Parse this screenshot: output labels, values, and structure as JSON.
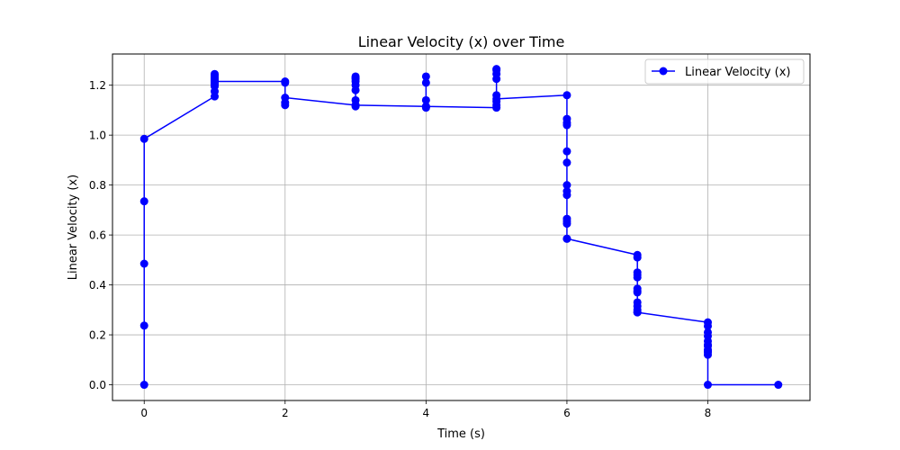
{
  "chart_data": {
    "type": "line",
    "title": "Linear Velocity (x) over Time",
    "xlabel": "Time (s)",
    "ylabel": "Linear Velocity (x)",
    "xlim": [
      -0.45,
      9.45
    ],
    "ylim": [
      -0.063,
      1.325
    ],
    "xticks": [
      0,
      2,
      4,
      6,
      8
    ],
    "xtick_labels": [
      "0",
      "2",
      "4",
      "6",
      "8"
    ],
    "yticks": [
      0.0,
      0.2,
      0.4,
      0.6,
      0.8,
      1.0,
      1.2
    ],
    "ytick_labels": [
      "0.0",
      "0.2",
      "0.4",
      "0.6",
      "0.8",
      "1.0",
      "1.2"
    ],
    "grid": true,
    "legend": {
      "placement": "upper-right"
    },
    "series": [
      {
        "name": "Linear Velocity (x)",
        "color": "#0000ff",
        "marker": "circle",
        "x": [
          0,
          0,
          0,
          0,
          0,
          1,
          1,
          1,
          1,
          1,
          1,
          1,
          1,
          1,
          1,
          1,
          1,
          1,
          1,
          1,
          1,
          2,
          2,
          2,
          2,
          2,
          3,
          3,
          3,
          3,
          3,
          3,
          3,
          3,
          3,
          3,
          4,
          4,
          4,
          4,
          4,
          4,
          5,
          5,
          5,
          5,
          5,
          5,
          5,
          5,
          5,
          6,
          6,
          6,
          6,
          6,
          6,
          6,
          6,
          6,
          6,
          6,
          6,
          6,
          6,
          7,
          7,
          7,
          7,
          7,
          7,
          7,
          7,
          7,
          7,
          7,
          7,
          7,
          8,
          8,
          8,
          8,
          8,
          8,
          8,
          8,
          8,
          8,
          8,
          8,
          9
        ],
        "y": [
          0.0,
          0.237,
          0.485,
          0.735,
          0.985,
          1.155,
          1.175,
          1.205,
          1.22,
          1.23,
          1.24,
          1.245,
          1.235,
          1.225,
          1.215,
          1.21,
          1.205,
          1.2,
          1.195,
          1.205,
          1.215,
          1.215,
          1.21,
          1.12,
          1.13,
          1.15,
          1.12,
          1.115,
          1.14,
          1.18,
          1.2,
          1.215,
          1.225,
          1.235,
          1.23,
          1.12,
          1.115,
          1.11,
          1.14,
          1.21,
          1.235,
          1.115,
          1.11,
          1.12,
          1.135,
          1.16,
          1.225,
          1.245,
          1.265,
          1.26,
          1.145,
          1.16,
          1.065,
          1.05,
          1.04,
          0.935,
          0.89,
          0.8,
          0.775,
          0.76,
          0.665,
          0.655,
          0.645,
          0.585,
          0.585,
          0.52,
          0.51,
          0.45,
          0.44,
          0.43,
          0.385,
          0.375,
          0.37,
          0.33,
          0.315,
          0.3,
          0.29,
          0.29,
          0.25,
          0.235,
          0.21,
          0.195,
          0.175,
          0.16,
          0.155,
          0.14,
          0.13,
          0.12,
          0.135,
          0.0,
          0.0
        ]
      }
    ]
  }
}
